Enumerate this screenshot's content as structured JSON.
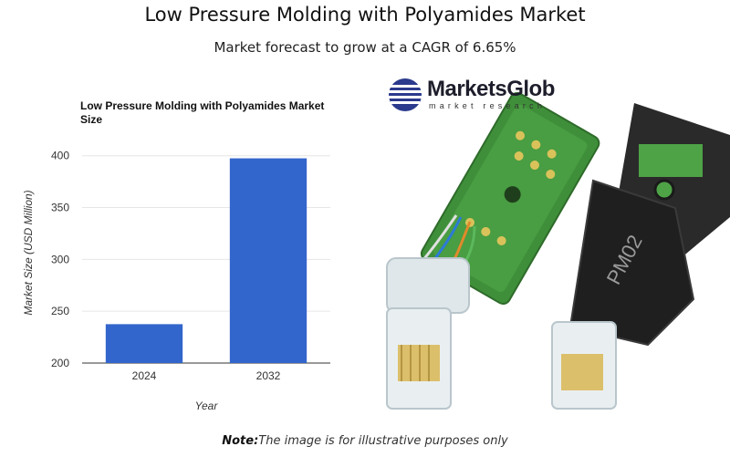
{
  "page": {
    "title": "Low Pressure Molding with Polyamides Market",
    "subtitle": "Market forecast to grow at a CAGR of 6.65%",
    "note_label": "Note:",
    "note_text": "The image is for illustrative purposes only"
  },
  "brand": {
    "name": "MarketsGlob",
    "tagline": "market research"
  },
  "colors": {
    "bar": "#3366cc",
    "grid": "#e6e6e6",
    "axis": "#333333"
  },
  "photo": {
    "label": "PM02"
  },
  "chart_data": {
    "type": "bar",
    "title_lines": [
      "Low Pressure Molding with Polyamides Market",
      "Size"
    ],
    "categories": [
      "2024",
      "2032"
    ],
    "values": [
      237.5,
      397.5
    ],
    "xlabel": "Year",
    "ylabel": "Market Size (USD Million)",
    "ylim": [
      200,
      420
    ],
    "yticks": [
      200,
      250,
      300,
      350,
      400
    ],
    "grid": true,
    "legend": "none"
  }
}
